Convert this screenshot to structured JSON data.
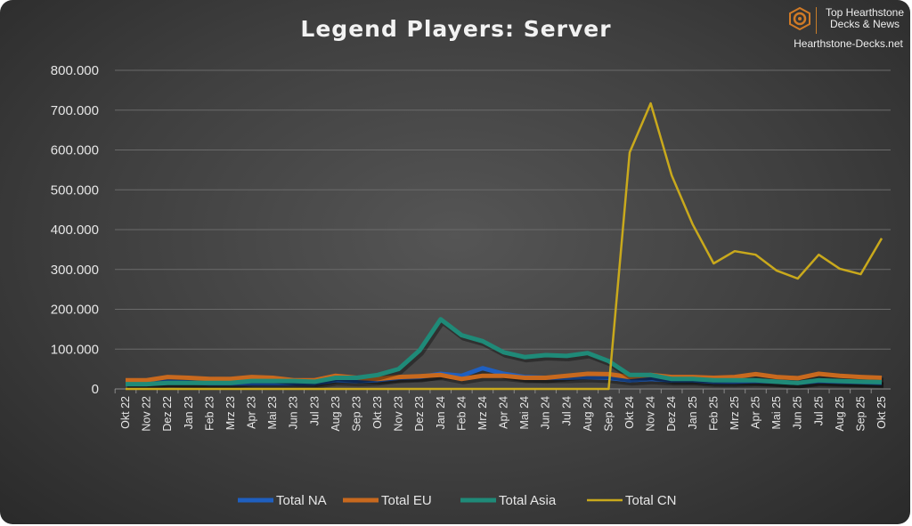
{
  "logo": {
    "line1": "Top Hearthstone",
    "line2": "Decks & News",
    "site": "Hearthstone-Decks.net"
  },
  "chart_data": {
    "type": "line",
    "title": "Legend Players: Server",
    "xlabel": "",
    "ylabel": "",
    "ylim": [
      0,
      800000
    ],
    "yticks": [
      0,
      100000,
      200000,
      300000,
      400000,
      500000,
      600000,
      700000,
      800000
    ],
    "ytick_labels": [
      "0",
      "100.000",
      "200.000",
      "300.000",
      "400.000",
      "500.000",
      "600.000",
      "700.000",
      "800.000"
    ],
    "grid": true,
    "legend_position": "bottom",
    "categories": [
      "Okt 22",
      "Nov 22",
      "Dez 22",
      "Jan 23",
      "Feb 23",
      "Mrz 23",
      "Apr 23",
      "Mai 23",
      "Jun 23",
      "Jul 23",
      "Aug 23",
      "Sep 23",
      "Okt 23",
      "Nov 23",
      "Dez 23",
      "Jan 24",
      "Feb 24",
      "Mrz 24",
      "Apr 24",
      "Mai 24",
      "Jun 24",
      "Jul 24",
      "Aug 24",
      "Sep 24",
      "Okt 24",
      "Nov 24",
      "Dez 24",
      "Jan 25",
      "Feb 25",
      "Mrz 25",
      "Apr 25",
      "Mai 25",
      "Jun 25",
      "Jul 25",
      "Aug 25",
      "Sep 25",
      "Okt 25"
    ],
    "series": [
      {
        "name": "Total NA",
        "color": "#1f5fc0",
        "values": [
          12000,
          12000,
          18000,
          16000,
          14000,
          14000,
          14000,
          14000,
          14000,
          14000,
          22000,
          20000,
          22000,
          28000,
          30000,
          38000,
          33000,
          52000,
          38000,
          30000,
          28000,
          28000,
          30000,
          28000,
          22000,
          25000,
          22000,
          22000,
          18000,
          18000,
          20000,
          18000,
          15000,
          20000,
          18000,
          17000,
          15000
        ]
      },
      {
        "name": "Total EU",
        "color": "#c8691e",
        "values": [
          22000,
          22000,
          30000,
          28000,
          25000,
          25000,
          30000,
          28000,
          22000,
          22000,
          33000,
          28000,
          25000,
          30000,
          32000,
          35000,
          25000,
          33000,
          33000,
          28000,
          28000,
          33000,
          38000,
          37000,
          30000,
          35000,
          30000,
          30000,
          28000,
          30000,
          37000,
          30000,
          27000,
          38000,
          33000,
          30000,
          28000
        ]
      },
      {
        "name": "Total Asia",
        "color": "#1f8a78",
        "values": [
          12000,
          12000,
          15000,
          15000,
          15000,
          15000,
          20000,
          20000,
          20000,
          18000,
          28000,
          28000,
          35000,
          50000,
          97000,
          175000,
          135000,
          120000,
          92000,
          80000,
          85000,
          83000,
          90000,
          70000,
          35000,
          35000,
          25000,
          25000,
          22000,
          22000,
          22000,
          18000,
          15000,
          22000,
          20000,
          18000,
          17000
        ]
      },
      {
        "name": "Total CN",
        "color": "#c9a91c",
        "values": [
          0,
          0,
          0,
          0,
          0,
          0,
          0,
          0,
          0,
          0,
          0,
          0,
          0,
          0,
          0,
          0,
          0,
          0,
          0,
          0,
          0,
          0,
          0,
          0,
          594000,
          717000,
          536000,
          413000,
          315000,
          346000,
          337000,
          297000,
          277000,
          337000,
          302000,
          288000,
          378000
        ]
      }
    ]
  }
}
